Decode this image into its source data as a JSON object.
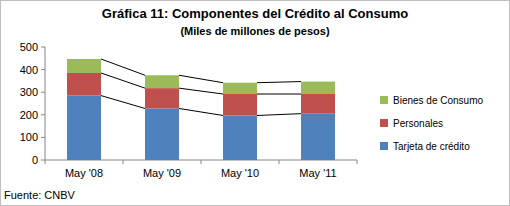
{
  "chart_data": {
    "type": "bar",
    "stacked": true,
    "title": "Gráfica 11: Componentes del Crédito al Consumo",
    "subtitle": "(Miles de millones de pesos)",
    "annotations": [
      "Fuente: CNBV"
    ],
    "categories": [
      "May '08",
      "May '09",
      "May '10",
      "May '11"
    ],
    "series": [
      {
        "name": "Tarjeta de crédito",
        "color": "#4f81bd",
        "values": [
          285,
          228,
          197,
          205
        ]
      },
      {
        "name": "Personales",
        "color": "#c0504d",
        "values": [
          100,
          90,
          95,
          87
        ]
      },
      {
        "name": "Bienes de Consumo",
        "color": "#9bbb59",
        "values": [
          62,
          57,
          50,
          55
        ]
      }
    ],
    "ylim": [
      0,
      500
    ],
    "yticks": [
      0,
      100,
      200,
      300,
      400,
      500
    ],
    "legend": "right"
  }
}
